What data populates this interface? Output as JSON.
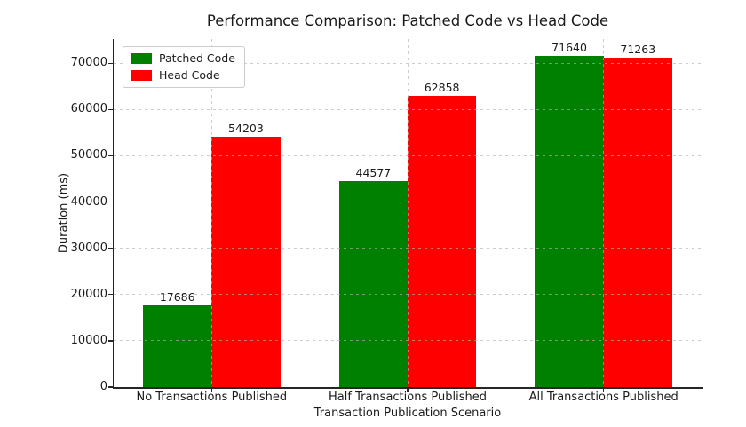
{
  "chart_data": {
    "type": "bar",
    "title": "Performance Comparison: Patched Code vs Head Code",
    "xlabel": "Transaction Publication Scenario",
    "ylabel": "Duration (ms)",
    "categories": [
      "No Transactions Published",
      "Half Transactions Published",
      "All Transactions Published"
    ],
    "series": [
      {
        "name": "Patched Code",
        "color": "#008000",
        "values": [
          17686,
          44577,
          71640
        ]
      },
      {
        "name": "Head Code",
        "color": "#ff0000",
        "values": [
          54203,
          62858,
          71263
        ]
      }
    ],
    "ylim": [
      0,
      75222
    ],
    "yticks": [
      0,
      10000,
      20000,
      30000,
      40000,
      50000,
      60000,
      70000
    ],
    "grid": true,
    "grid_style": "dashed",
    "legend_position": "upper-left",
    "bar_value_labels": true
  },
  "colors": {
    "patched": "#008000",
    "head": "#ff0000",
    "grid": "#b0b0b0",
    "spine": "#262626",
    "text": "#1a1a1a"
  }
}
